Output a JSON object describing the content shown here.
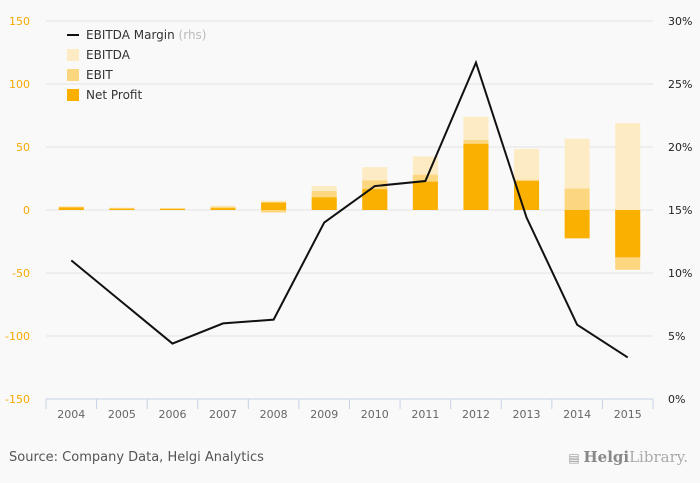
{
  "chart_data": {
    "type": "bar",
    "categories": [
      "2004",
      "2005",
      "2006",
      "2007",
      "2008",
      "2009",
      "2010",
      "2011",
      "2012",
      "2013",
      "2014",
      "2015"
    ],
    "series": [
      {
        "name": "EBITDA",
        "kind": "bar",
        "color": "#fdebc3",
        "values": [
          3,
          2,
          1.5,
          3.5,
          7.5,
          19,
          34,
          42.5,
          74,
          48.5,
          56.5,
          69
        ]
      },
      {
        "name": "EBIT",
        "kind": "bar",
        "color": "#fdd680",
        "values": [
          2.5,
          1.5,
          1,
          2.5,
          -2,
          15,
          23.5,
          28,
          55.5,
          24,
          17,
          -47.5
        ]
      },
      {
        "name": "Net Profit",
        "kind": "bar",
        "color": "#f9b000",
        "values": [
          2,
          1,
          1,
          1.5,
          6,
          10,
          16.5,
          22.5,
          52.5,
          23,
          -22.5,
          -37.5
        ]
      },
      {
        "name": "EBITDA Margin",
        "kind": "line",
        "axis": "right",
        "color": "#111111",
        "values": [
          11.0,
          7.7,
          4.4,
          6.0,
          6.3,
          14.0,
          16.9,
          17.3,
          26.7,
          14.4,
          5.9,
          3.3
        ]
      }
    ],
    "ylim": [
      -150,
      150
    ],
    "yticks": [
      "150",
      "100",
      "50",
      "0",
      "-50",
      "-100",
      "-150"
    ],
    "y2lim": [
      0,
      30
    ],
    "y2ticks": [
      "30%",
      "25%",
      "20%",
      "15%",
      "10%",
      "5%",
      "0%"
    ],
    "title": "",
    "xlabel": "",
    "ylabel": "",
    "legend": {
      "placement": "top-left",
      "items": [
        {
          "label": "EBITDA Margin",
          "note": "(rhs)",
          "type": "line",
          "color": "#111111"
        },
        {
          "label": "EBITDA",
          "type": "bar",
          "color": "#fdebc3"
        },
        {
          "label": "EBIT",
          "type": "bar",
          "color": "#fdd680"
        },
        {
          "label": "Net Profit",
          "type": "bar",
          "color": "#f9b000"
        }
      ]
    },
    "grid": true
  },
  "footer": {
    "source": "Source: Company Data, Helgi Analytics",
    "brand_bold": "Helgi",
    "brand_light": "Library."
  }
}
